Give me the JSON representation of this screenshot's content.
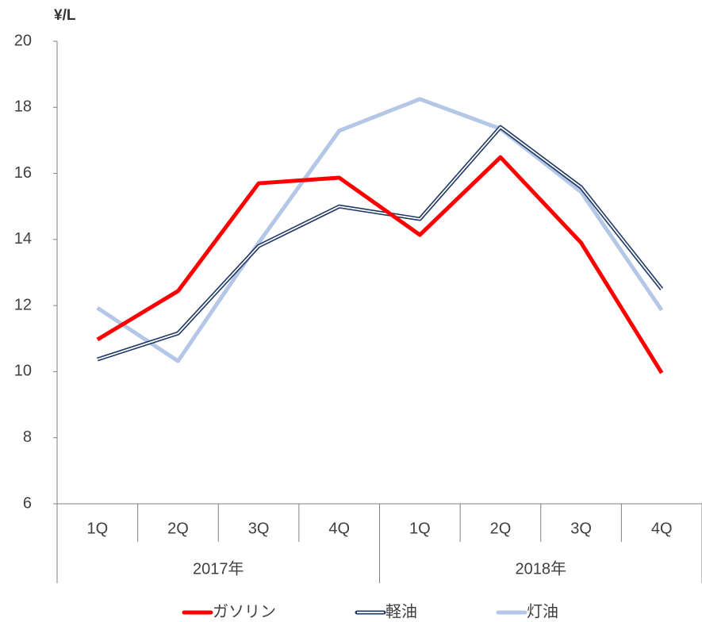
{
  "chart_data": {
    "type": "line",
    "y_unit": "¥/L",
    "categories": [
      "1Q",
      "2Q",
      "3Q",
      "4Q",
      "1Q",
      "2Q",
      "3Q",
      "4Q"
    ],
    "groups": [
      "2017年",
      "2018年"
    ],
    "series": [
      {
        "name": "ガソリン",
        "color": "#ff0000",
        "values": [
          10.97,
          12.44,
          15.7,
          15.87,
          14.14,
          16.49,
          13.9,
          9.96
        ]
      },
      {
        "name": "軽油",
        "color": "#1f3864",
        "double": true,
        "values": [
          10.37,
          11.16,
          13.8,
          15.0,
          14.62,
          17.4,
          15.58,
          12.5
        ]
      },
      {
        "name": "灯油",
        "color": "#b4c7e7",
        "values": [
          11.93,
          10.32,
          13.9,
          17.29,
          18.25,
          17.35,
          15.44,
          11.86
        ]
      }
    ],
    "ylim": [
      6,
      20
    ],
    "yticks": [
      6,
      8,
      10,
      12,
      14,
      16,
      18,
      20
    ],
    "grid": false
  }
}
